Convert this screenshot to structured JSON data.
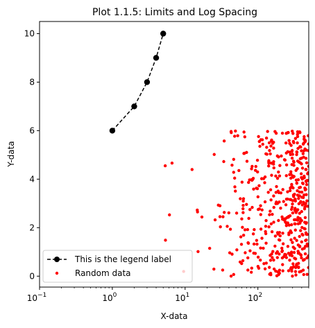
{
  "chart_data": {
    "type": "scatter",
    "title": "Plot 1.1.5: Limits and Log Spacing",
    "xlabel": "X-data",
    "ylabel": "Y-data",
    "xscale": "log",
    "xlim": [
      0.1,
      500
    ],
    "ylim": [
      -0.45,
      10.5
    ],
    "grid": false,
    "legend_placement": "lower-left",
    "x_ticks": [
      {
        "value": 0.1,
        "base": "10",
        "exp": "−1"
      },
      {
        "value": 1,
        "base": "10",
        "exp": "0"
      },
      {
        "value": 10,
        "base": "10",
        "exp": "1"
      },
      {
        "value": 100,
        "base": "10",
        "exp": "2"
      }
    ],
    "y_ticks": [
      {
        "value": 0,
        "label": "0"
      },
      {
        "value": 2,
        "label": "2"
      },
      {
        "value": 4,
        "label": "4"
      },
      {
        "value": 6,
        "label": "6"
      },
      {
        "value": 8,
        "label": "8"
      },
      {
        "value": 10,
        "label": "10"
      }
    ],
    "series": [
      {
        "name": "This is the legend label",
        "style": "dashed-line-circle-markers",
        "color": "#000000",
        "x": [
          1,
          2,
          3,
          4,
          5
        ],
        "y": [
          6,
          7,
          8,
          9,
          10
        ]
      },
      {
        "name": "Random data",
        "style": "points",
        "color": "#ff0000",
        "count": 500,
        "x_range": [
          1,
          500
        ],
        "y_range": [
          0,
          6
        ],
        "seed": 7
      }
    ]
  }
}
